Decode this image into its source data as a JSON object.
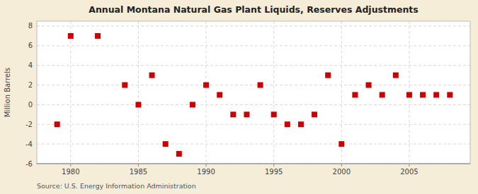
{
  "chart_data": {
    "type": "scatter",
    "title": "Annual Montana Natural Gas Plant Liquids, Reserves Adjustments",
    "ylabel": "Million Barrels",
    "annotations": [
      "Source: U.S. Energy Information Administration"
    ],
    "x": [
      1979,
      1980,
      1982,
      1984,
      1985,
      1986,
      1987,
      1988,
      1989,
      1990,
      1991,
      1992,
      1993,
      1994,
      1995,
      1996,
      1997,
      1998,
      1999,
      2000,
      2001,
      2002,
      2003,
      2004,
      2005,
      2006,
      2007,
      2008
    ],
    "values": [
      -2,
      7,
      7,
      2,
      0,
      3,
      -4,
      -5,
      0,
      2,
      1,
      -1,
      -1,
      2,
      -1,
      -2,
      -2,
      -1,
      3,
      -4,
      1,
      2,
      1,
      3,
      1,
      1,
      1,
      1
    ],
    "color": "#cc0000",
    "marker": "square",
    "xlim": [
      1977.5,
      2009.5
    ],
    "xticks": [
      1980,
      1985,
      1990,
      1995,
      2000,
      2005
    ],
    "ylim": [
      -6,
      8.5
    ],
    "yticks": [
      -6,
      -4,
      -2,
      0,
      2,
      4,
      6,
      8
    ],
    "grid": true
  }
}
